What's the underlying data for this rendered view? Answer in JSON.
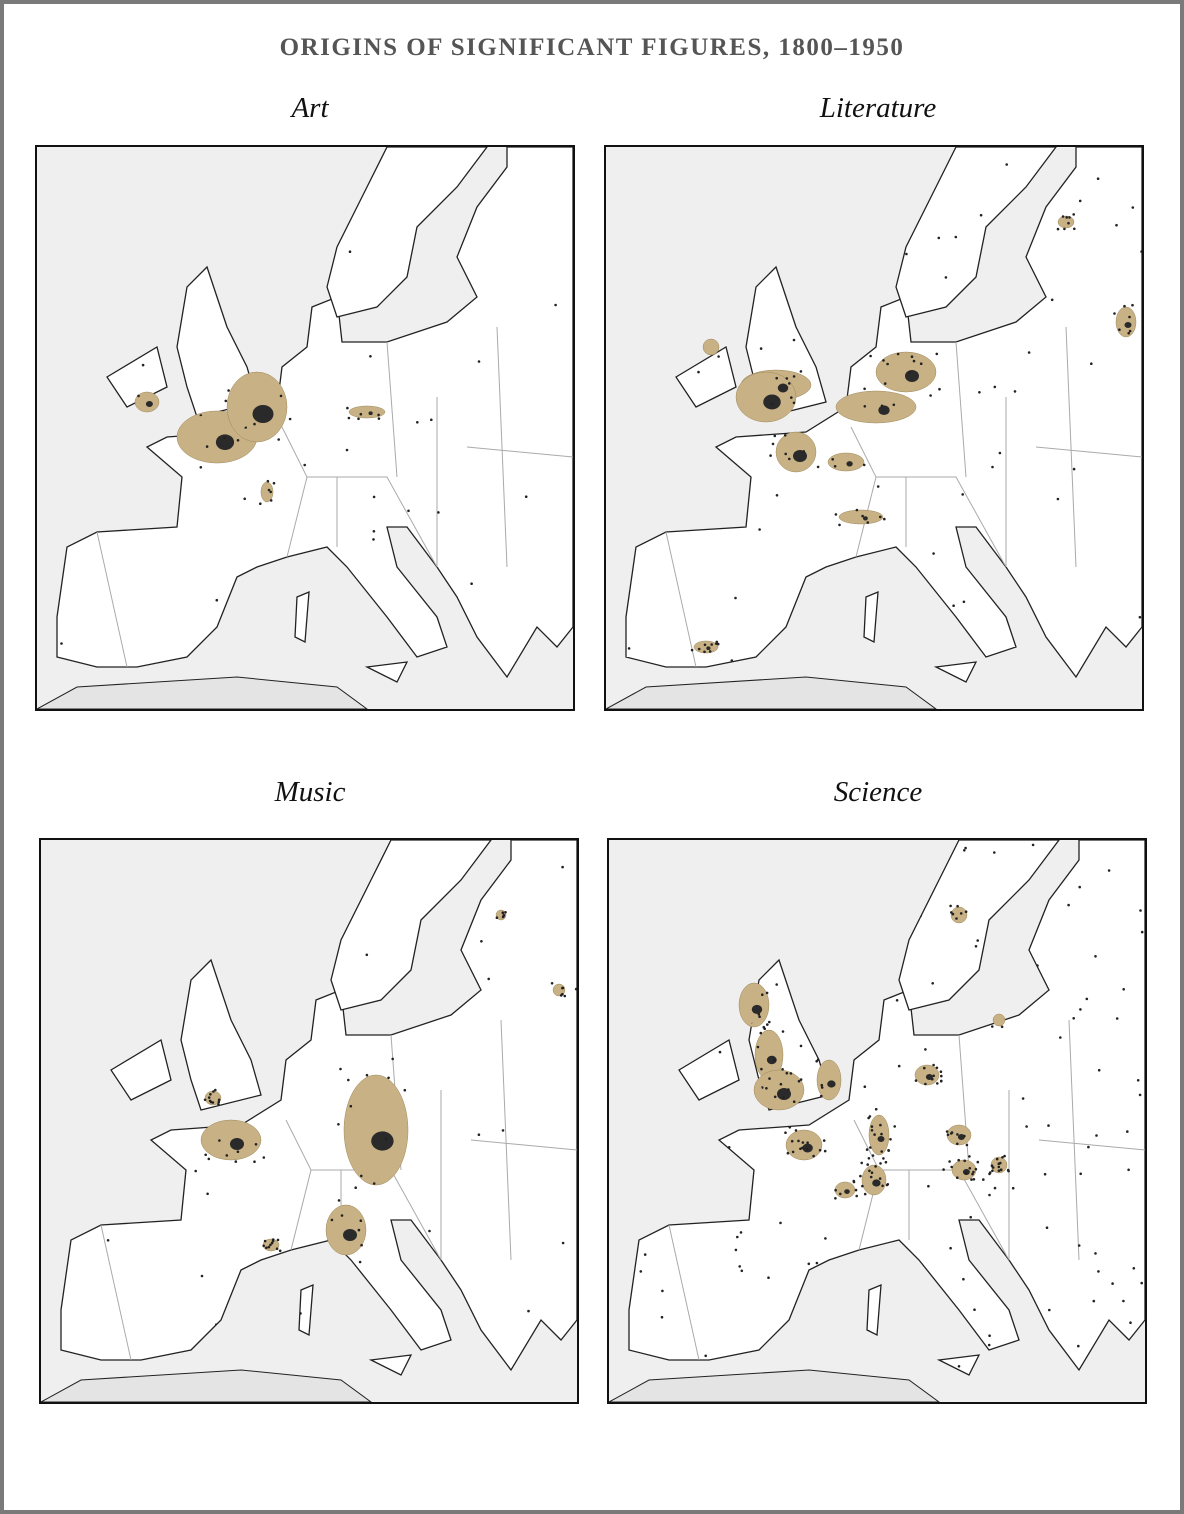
{
  "title": "ORIGINS OF SIGNIFICANT FIGURES, 1800–1950",
  "panels": [
    {
      "title": "Art"
    },
    {
      "title": "Literature"
    },
    {
      "title": "Music"
    },
    {
      "title": "Science"
    }
  ]
}
